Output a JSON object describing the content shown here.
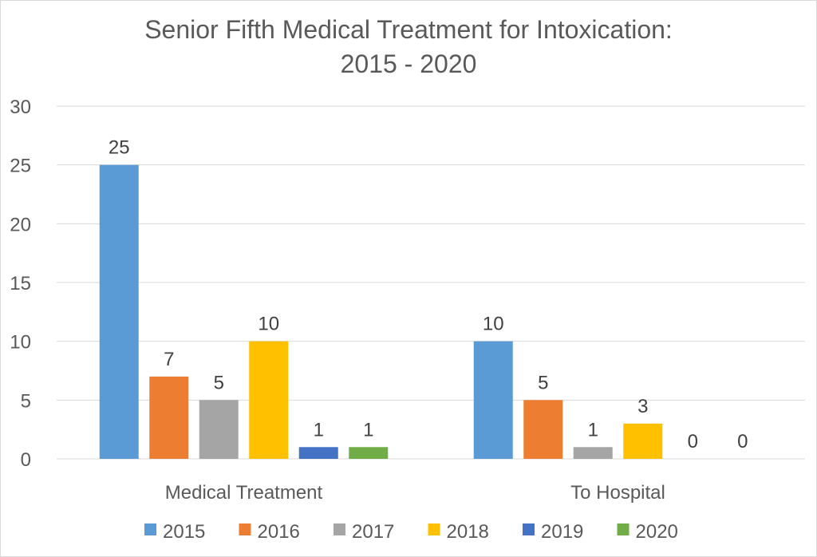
{
  "chart_data": {
    "type": "bar",
    "title": "Senior Fifth Medical Treatment for Intoxication:",
    "subtitle": "2015 - 2020",
    "categories": [
      "Medical Treatment",
      "To Hospital"
    ],
    "series": [
      {
        "name": "2015",
        "color": "#5B9BD5",
        "values": [
          25,
          10
        ]
      },
      {
        "name": "2016",
        "color": "#ED7D31",
        "values": [
          7,
          5
        ]
      },
      {
        "name": "2017",
        "color": "#A5A5A5",
        "values": [
          5,
          1
        ]
      },
      {
        "name": "2018",
        "color": "#FFC000",
        "values": [
          10,
          3
        ]
      },
      {
        "name": "2019",
        "color": "#4472C4",
        "values": [
          1,
          0
        ]
      },
      {
        "name": "2020",
        "color": "#70AD47",
        "values": [
          1,
          0
        ]
      }
    ],
    "ylim": [
      0,
      30
    ],
    "yticks": [
      0,
      5,
      10,
      15,
      20,
      25,
      30
    ],
    "grid": true,
    "legend_position": "bottom",
    "data_labels": true
  }
}
